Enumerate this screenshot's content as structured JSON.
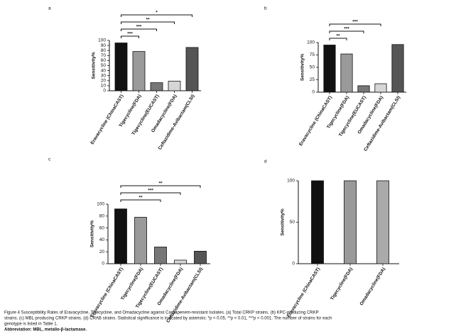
{
  "chart_data": [
    {
      "type": "bar",
      "panel": "a",
      "y_label": "Sensitivity%",
      "categories": [
        "Eravacycline (ChinaCAST)",
        "Tigecycline(FDA)",
        "Tigecycline(EUCAST)",
        "Omadacycline(FDA)",
        "Ceftazidime-Avibactam(CLSI)"
      ],
      "values": [
        95,
        78,
        16,
        19,
        86
      ],
      "colors": [
        "#111111",
        "#9a9a9a",
        "#777777",
        "#d6d6d6",
        "#555555"
      ],
      "ylim": [
        0,
        100
      ],
      "yticks": [
        0,
        10,
        20,
        30,
        40,
        50,
        60,
        70,
        80,
        90,
        100
      ],
      "annotations": [
        {
          "from": 0,
          "to": 4,
          "label": "*"
        },
        {
          "from": 0,
          "to": 3,
          "label": "**"
        },
        {
          "from": 0,
          "to": 2,
          "label": "***"
        },
        {
          "from": 0,
          "to": 1,
          "label": "***"
        }
      ]
    },
    {
      "type": "bar",
      "panel": "b",
      "y_label": "Sensitivity%",
      "categories": [
        "Eravacycline (ChinaCAST)",
        "Tigecycline(FDA)",
        "Tigecycline(EUCAST)",
        "Omadacycline(FDA)",
        "Ceftazidime-Avibactam(CLSI)"
      ],
      "values": [
        95,
        77,
        13,
        17,
        96
      ],
      "colors": [
        "#111111",
        "#9a9a9a",
        "#777777",
        "#d6d6d6",
        "#555555"
      ],
      "ylim": [
        0,
        100
      ],
      "yticks": [
        0,
        25,
        50,
        75,
        100
      ],
      "annotations": [
        {
          "from": 0,
          "to": 3,
          "label": "***"
        },
        {
          "from": 0,
          "to": 2,
          "label": "***"
        },
        {
          "from": 0,
          "to": 1,
          "label": "**"
        }
      ]
    },
    {
      "type": "bar",
      "panel": "c",
      "y_label": "Sensitivity%",
      "categories": [
        "Eravacycline (ChinaCAST)",
        "Tigecycline(FDA)",
        "Tigecycline(EUCAST)",
        "Omadacycline(FDA)",
        "Ceftazidime-Avibactam(CLSI)"
      ],
      "values": [
        92,
        78,
        28,
        6,
        21
      ],
      "colors": [
        "#111111",
        "#9a9a9a",
        "#777777",
        "#d6d6d6",
        "#555555"
      ],
      "ylim": [
        0,
        100
      ],
      "yticks": [
        0,
        20,
        40,
        60,
        80,
        100
      ],
      "annotations": [
        {
          "from": 0,
          "to": 4,
          "label": "**"
        },
        {
          "from": 0,
          "to": 3,
          "label": "***"
        },
        {
          "from": 0,
          "to": 2,
          "label": "**"
        }
      ]
    },
    {
      "type": "bar",
      "panel": "d",
      "y_label": "Sensitivity%",
      "categories": [
        "Eravacycline (ChinaCAST)",
        "Tigecycline(FDA)",
        "Omadacycline(FDA)"
      ],
      "values": [
        100,
        100,
        100
      ],
      "colors": [
        "#111111",
        "#9a9a9a",
        "#aaaaaa"
      ],
      "ylim": [
        0,
        100
      ],
      "yticks": [
        0,
        50,
        100
      ],
      "annotations": []
    }
  ],
  "caption": {
    "lines": [
      "Figure 4 Susceptibility Rates of Eravacycline, Tigecycline, and Omadacycline against Carbapenem-resistant Isolates. (a) Total CRKP strains. (b) KPC-producing CRKP",
      "strains. (c) MBL-producing CRKP strains. (d) CRAB strains. Statistical significance is indicated by asterisks: *p < 0.05, **p < 0.01, ***p < 0.001. The number of strains for each",
      "genotype is listed in Table 1.",
      "Abbreviation: MBL, metallo-β-lactamase."
    ]
  }
}
